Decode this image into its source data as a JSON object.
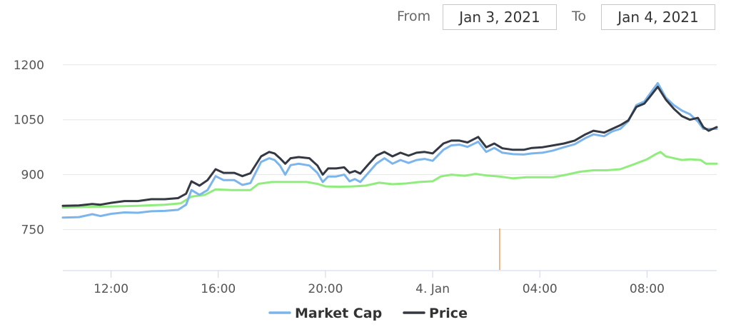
{
  "range_selector": {
    "from_label": "From",
    "from_value": "Jan 3, 2021",
    "to_label": "To",
    "to_value": "Jan 4, 2021"
  },
  "chart_data": {
    "type": "line",
    "title": "",
    "xlabel": "",
    "ylabel": "",
    "ylim": [
      640,
      1260
    ],
    "yticks": [
      750,
      900,
      1050,
      1200
    ],
    "x_tick_labels": [
      "12:00",
      "16:00",
      "20:00",
      "4. Jan",
      "04:00",
      "08:00"
    ],
    "x_tick_hours": [
      12,
      16,
      20,
      24,
      28,
      32
    ],
    "xlim_hours": [
      10.2,
      34.6
    ],
    "grid": true,
    "legend": "bottom-center",
    "event_marker_hour": 26.5,
    "series": [
      {
        "name": "Market Cap",
        "color": "#7cb5ec",
        "in_legend": true,
        "points": [
          [
            10.2,
            783
          ],
          [
            10.8,
            784
          ],
          [
            11.3,
            792
          ],
          [
            11.6,
            787
          ],
          [
            12.0,
            793
          ],
          [
            12.5,
            797
          ],
          [
            13.0,
            796
          ],
          [
            13.5,
            800
          ],
          [
            14.0,
            801
          ],
          [
            14.5,
            804
          ],
          [
            14.8,
            818
          ],
          [
            15.0,
            858
          ],
          [
            15.3,
            845
          ],
          [
            15.6,
            858
          ],
          [
            15.9,
            896
          ],
          [
            16.2,
            885
          ],
          [
            16.6,
            885
          ],
          [
            16.9,
            872
          ],
          [
            17.2,
            877
          ],
          [
            17.6,
            935
          ],
          [
            17.9,
            945
          ],
          [
            18.1,
            940
          ],
          [
            18.3,
            925
          ],
          [
            18.5,
            900
          ],
          [
            18.7,
            926
          ],
          [
            19.0,
            930
          ],
          [
            19.4,
            925
          ],
          [
            19.7,
            905
          ],
          [
            19.9,
            880
          ],
          [
            20.1,
            895
          ],
          [
            20.4,
            895
          ],
          [
            20.7,
            900
          ],
          [
            20.9,
            882
          ],
          [
            21.1,
            888
          ],
          [
            21.3,
            880
          ],
          [
            21.6,
            905
          ],
          [
            21.9,
            930
          ],
          [
            22.2,
            945
          ],
          [
            22.5,
            930
          ],
          [
            22.8,
            940
          ],
          [
            23.1,
            932
          ],
          [
            23.4,
            940
          ],
          [
            23.7,
            943
          ],
          [
            24.0,
            938
          ],
          [
            24.4,
            968
          ],
          [
            24.7,
            980
          ],
          [
            25.0,
            982
          ],
          [
            25.3,
            976
          ],
          [
            25.7,
            990
          ],
          [
            26.0,
            962
          ],
          [
            26.3,
            973
          ],
          [
            26.6,
            960
          ],
          [
            27.0,
            956
          ],
          [
            27.4,
            955
          ],
          [
            27.7,
            958
          ],
          [
            28.1,
            960
          ],
          [
            28.5,
            966
          ],
          [
            28.9,
            975
          ],
          [
            29.3,
            983
          ],
          [
            29.7,
            1000
          ],
          [
            30.0,
            1010
          ],
          [
            30.4,
            1005
          ],
          [
            30.7,
            1018
          ],
          [
            31.0,
            1025
          ],
          [
            31.3,
            1046
          ],
          [
            31.6,
            1090
          ],
          [
            31.9,
            1100
          ],
          [
            32.1,
            1120
          ],
          [
            32.4,
            1150
          ],
          [
            32.7,
            1110
          ],
          [
            33.0,
            1090
          ],
          [
            33.3,
            1075
          ],
          [
            33.6,
            1065
          ],
          [
            33.9,
            1045
          ],
          [
            34.1,
            1025
          ],
          [
            34.3,
            1025
          ],
          [
            34.6,
            1025
          ]
        ]
      },
      {
        "name": "Price",
        "color": "#333842",
        "in_legend": true,
        "points": [
          [
            10.2,
            815
          ],
          [
            10.8,
            816
          ],
          [
            11.3,
            820
          ],
          [
            11.6,
            818
          ],
          [
            12.0,
            823
          ],
          [
            12.5,
            828
          ],
          [
            13.0,
            828
          ],
          [
            13.5,
            833
          ],
          [
            14.0,
            833
          ],
          [
            14.5,
            836
          ],
          [
            14.8,
            848
          ],
          [
            15.0,
            882
          ],
          [
            15.3,
            870
          ],
          [
            15.6,
            885
          ],
          [
            15.9,
            915
          ],
          [
            16.2,
            905
          ],
          [
            16.6,
            905
          ],
          [
            16.9,
            896
          ],
          [
            17.2,
            904
          ],
          [
            17.6,
            950
          ],
          [
            17.9,
            962
          ],
          [
            18.1,
            958
          ],
          [
            18.3,
            945
          ],
          [
            18.5,
            930
          ],
          [
            18.7,
            945
          ],
          [
            19.0,
            948
          ],
          [
            19.4,
            945
          ],
          [
            19.7,
            925
          ],
          [
            19.9,
            900
          ],
          [
            20.1,
            917
          ],
          [
            20.4,
            917
          ],
          [
            20.7,
            920
          ],
          [
            20.9,
            905
          ],
          [
            21.1,
            910
          ],
          [
            21.3,
            903
          ],
          [
            21.6,
            928
          ],
          [
            21.9,
            952
          ],
          [
            22.2,
            962
          ],
          [
            22.5,
            950
          ],
          [
            22.8,
            960
          ],
          [
            23.1,
            952
          ],
          [
            23.4,
            960
          ],
          [
            23.7,
            962
          ],
          [
            24.0,
            958
          ],
          [
            24.4,
            985
          ],
          [
            24.7,
            993
          ],
          [
            25.0,
            993
          ],
          [
            25.3,
            988
          ],
          [
            25.7,
            1003
          ],
          [
            26.0,
            975
          ],
          [
            26.3,
            985
          ],
          [
            26.6,
            972
          ],
          [
            27.0,
            968
          ],
          [
            27.4,
            968
          ],
          [
            27.7,
            973
          ],
          [
            28.1,
            975
          ],
          [
            28.5,
            980
          ],
          [
            28.9,
            985
          ],
          [
            29.3,
            993
          ],
          [
            29.7,
            1010
          ],
          [
            30.0,
            1020
          ],
          [
            30.4,
            1015
          ],
          [
            30.7,
            1025
          ],
          [
            31.0,
            1035
          ],
          [
            31.3,
            1048
          ],
          [
            31.6,
            1085
          ],
          [
            31.9,
            1094
          ],
          [
            32.1,
            1112
          ],
          [
            32.4,
            1140
          ],
          [
            32.7,
            1105
          ],
          [
            33.0,
            1080
          ],
          [
            33.3,
            1060
          ],
          [
            33.6,
            1050
          ],
          [
            33.9,
            1055
          ],
          [
            34.1,
            1030
          ],
          [
            34.3,
            1020
          ],
          [
            34.6,
            1030
          ]
        ]
      },
      {
        "name": "",
        "color": "#90ed7d",
        "in_legend": false,
        "points": [
          [
            10.2,
            810
          ],
          [
            11.0,
            812
          ],
          [
            12.0,
            813
          ],
          [
            13.0,
            815
          ],
          [
            14.0,
            818
          ],
          [
            14.6,
            822
          ],
          [
            15.0,
            840
          ],
          [
            15.5,
            845
          ],
          [
            15.9,
            860
          ],
          [
            16.5,
            858
          ],
          [
            17.2,
            858
          ],
          [
            17.5,
            875
          ],
          [
            18.0,
            880
          ],
          [
            18.6,
            880
          ],
          [
            19.3,
            880
          ],
          [
            19.7,
            875
          ],
          [
            20.0,
            868
          ],
          [
            20.5,
            867
          ],
          [
            21.0,
            868
          ],
          [
            21.5,
            870
          ],
          [
            22.0,
            878
          ],
          [
            22.5,
            874
          ],
          [
            23.0,
            876
          ],
          [
            23.5,
            880
          ],
          [
            24.0,
            882
          ],
          [
            24.3,
            895
          ],
          [
            24.7,
            900
          ],
          [
            25.2,
            897
          ],
          [
            25.6,
            902
          ],
          [
            26.0,
            898
          ],
          [
            26.5,
            895
          ],
          [
            27.0,
            890
          ],
          [
            27.5,
            893
          ],
          [
            28.0,
            893
          ],
          [
            28.5,
            893
          ],
          [
            29.0,
            900
          ],
          [
            29.5,
            908
          ],
          [
            30.0,
            912
          ],
          [
            30.5,
            912
          ],
          [
            31.0,
            915
          ],
          [
            31.5,
            928
          ],
          [
            32.0,
            942
          ],
          [
            32.3,
            955
          ],
          [
            32.5,
            962
          ],
          [
            32.7,
            950
          ],
          [
            33.0,
            945
          ],
          [
            33.3,
            940
          ],
          [
            33.6,
            942
          ],
          [
            34.0,
            940
          ],
          [
            34.2,
            930
          ],
          [
            34.6,
            930
          ]
        ]
      }
    ]
  }
}
